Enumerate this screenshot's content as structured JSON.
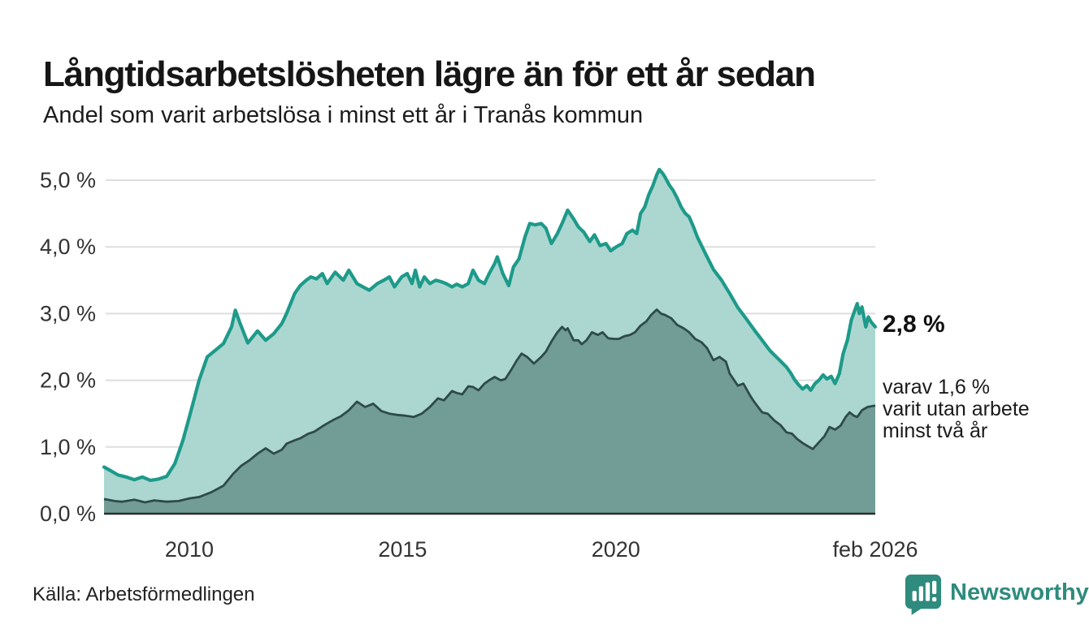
{
  "header": {
    "title": "Långtidsarbetslösheten lägre än för ett år sedan",
    "subtitle": "Andel som varit arbetslösa i minst ett år i Tranås kommun"
  },
  "annotations": {
    "latest_value": "2,8 %",
    "note_lines": [
      "varav 1,6 %",
      "varit utan arbete",
      "minst två år"
    ]
  },
  "footer": {
    "source": "Källa: Arbetsförmedlingen",
    "brand": "Newsworthy"
  },
  "colors": {
    "line_1yr": "#1d9a8a",
    "fill_1yr": "#a8d5cd",
    "line_2yr": "#2e4b47",
    "fill_2yr": "#6e9b94",
    "gridline": "#dedede",
    "axis": "#2d2d2d",
    "brand_teal": "#2e8b7d"
  },
  "chart_data": {
    "type": "area",
    "title": "Långtidsarbetslösheten lägre än för ett år sedan",
    "subtitle": "Andel som varit arbetslösa i minst ett år i Tranås kommun",
    "xlabel": "",
    "ylabel": "",
    "unit": "%",
    "grid": true,
    "legend_position": "none",
    "x_range": [
      2008.0,
      2026.083
    ],
    "y_range": [
      0,
      5.4
    ],
    "y_ticks": [
      {
        "v": 0,
        "label": "0,0 %"
      },
      {
        "v": 1,
        "label": "1,0 %"
      },
      {
        "v": 2,
        "label": "2,0 %"
      },
      {
        "v": 3,
        "label": "3,0 %"
      },
      {
        "v": 4,
        "label": "4,0 %"
      },
      {
        "v": 5,
        "label": "5,0 %"
      }
    ],
    "x_ticks": [
      {
        "v": 2010,
        "label": "2010"
      },
      {
        "v": 2015,
        "label": "2015"
      },
      {
        "v": 2020,
        "label": "2020"
      },
      {
        "v": 2026.083,
        "label": "feb 2026"
      }
    ],
    "series": [
      {
        "name": "Arbetslösa minst ett år",
        "latest_label": "2,8 %",
        "line_color": "#1d9a8a",
        "fill_color": "#a8d5cd",
        "points": [
          [
            2008.0,
            0.7
          ],
          [
            2008.17,
            0.64
          ],
          [
            2008.33,
            0.58
          ],
          [
            2008.52,
            0.55
          ],
          [
            2008.71,
            0.51
          ],
          [
            2008.9,
            0.55
          ],
          [
            2009.09,
            0.5
          ],
          [
            2009.28,
            0.52
          ],
          [
            2009.47,
            0.56
          ],
          [
            2009.66,
            0.75
          ],
          [
            2009.85,
            1.1
          ],
          [
            2010.0,
            1.45
          ],
          [
            2010.23,
            2.0
          ],
          [
            2010.42,
            2.35
          ],
          [
            2010.61,
            2.45
          ],
          [
            2010.8,
            2.55
          ],
          [
            2010.99,
            2.8
          ],
          [
            2011.08,
            3.05
          ],
          [
            2011.18,
            2.87
          ],
          [
            2011.37,
            2.56
          ],
          [
            2011.6,
            2.74
          ],
          [
            2011.79,
            2.6
          ],
          [
            2011.98,
            2.7
          ],
          [
            2012.17,
            2.85
          ],
          [
            2012.28,
            3.0
          ],
          [
            2012.47,
            3.3
          ],
          [
            2012.6,
            3.42
          ],
          [
            2012.74,
            3.5
          ],
          [
            2012.85,
            3.55
          ],
          [
            2012.98,
            3.52
          ],
          [
            2013.12,
            3.6
          ],
          [
            2013.23,
            3.45
          ],
          [
            2013.42,
            3.62
          ],
          [
            2013.61,
            3.5
          ],
          [
            2013.74,
            3.65
          ],
          [
            2013.93,
            3.45
          ],
          [
            2014.07,
            3.4
          ],
          [
            2014.22,
            3.35
          ],
          [
            2014.41,
            3.45
          ],
          [
            2014.56,
            3.5
          ],
          [
            2014.69,
            3.55
          ],
          [
            2014.81,
            3.4
          ],
          [
            2014.98,
            3.55
          ],
          [
            2015.11,
            3.6
          ],
          [
            2015.22,
            3.45
          ],
          [
            2015.3,
            3.65
          ],
          [
            2015.4,
            3.4
          ],
          [
            2015.51,
            3.55
          ],
          [
            2015.64,
            3.45
          ],
          [
            2015.78,
            3.5
          ],
          [
            2015.89,
            3.48
          ],
          [
            2016.02,
            3.45
          ],
          [
            2016.16,
            3.4
          ],
          [
            2016.27,
            3.44
          ],
          [
            2016.4,
            3.4
          ],
          [
            2016.54,
            3.45
          ],
          [
            2016.65,
            3.65
          ],
          [
            2016.78,
            3.5
          ],
          [
            2016.92,
            3.45
          ],
          [
            2017.03,
            3.6
          ],
          [
            2017.16,
            3.75
          ],
          [
            2017.22,
            3.85
          ],
          [
            2017.35,
            3.6
          ],
          [
            2017.49,
            3.42
          ],
          [
            2017.6,
            3.7
          ],
          [
            2017.73,
            3.82
          ],
          [
            2017.87,
            4.15
          ],
          [
            2017.98,
            4.35
          ],
          [
            2018.11,
            4.33
          ],
          [
            2018.25,
            4.35
          ],
          [
            2018.36,
            4.28
          ],
          [
            2018.49,
            4.05
          ],
          [
            2018.63,
            4.2
          ],
          [
            2018.74,
            4.35
          ],
          [
            2018.87,
            4.55
          ],
          [
            2019.01,
            4.42
          ],
          [
            2019.12,
            4.3
          ],
          [
            2019.25,
            4.22
          ],
          [
            2019.39,
            4.08
          ],
          [
            2019.5,
            4.18
          ],
          [
            2019.63,
            4.02
          ],
          [
            2019.77,
            4.05
          ],
          [
            2019.88,
            3.94
          ],
          [
            2020.01,
            4.0
          ],
          [
            2020.15,
            4.05
          ],
          [
            2020.26,
            4.2
          ],
          [
            2020.39,
            4.25
          ],
          [
            2020.49,
            4.2
          ],
          [
            2020.58,
            4.5
          ],
          [
            2020.68,
            4.6
          ],
          [
            2020.77,
            4.78
          ],
          [
            2020.87,
            4.92
          ],
          [
            2020.96,
            5.08
          ],
          [
            2021.02,
            5.16
          ],
          [
            2021.1,
            5.1
          ],
          [
            2021.15,
            5.05
          ],
          [
            2021.25,
            4.93
          ],
          [
            2021.34,
            4.85
          ],
          [
            2021.44,
            4.73
          ],
          [
            2021.53,
            4.6
          ],
          [
            2021.63,
            4.5
          ],
          [
            2021.72,
            4.45
          ],
          [
            2021.82,
            4.3
          ],
          [
            2021.91,
            4.15
          ],
          [
            2022.1,
            3.9
          ],
          [
            2022.29,
            3.66
          ],
          [
            2022.48,
            3.5
          ],
          [
            2022.67,
            3.3
          ],
          [
            2022.86,
            3.09
          ],
          [
            2023.05,
            2.93
          ],
          [
            2023.24,
            2.76
          ],
          [
            2023.43,
            2.6
          ],
          [
            2023.62,
            2.44
          ],
          [
            2023.81,
            2.32
          ],
          [
            2024.0,
            2.2
          ],
          [
            2024.1,
            2.11
          ],
          [
            2024.19,
            2.01
          ],
          [
            2024.29,
            1.93
          ],
          [
            2024.38,
            1.87
          ],
          [
            2024.48,
            1.92
          ],
          [
            2024.57,
            1.85
          ],
          [
            2024.67,
            1.95
          ],
          [
            2024.76,
            2.0
          ],
          [
            2024.86,
            2.08
          ],
          [
            2024.95,
            2.02
          ],
          [
            2025.05,
            2.06
          ],
          [
            2025.14,
            1.95
          ],
          [
            2025.24,
            2.1
          ],
          [
            2025.33,
            2.4
          ],
          [
            2025.43,
            2.6
          ],
          [
            2025.52,
            2.9
          ],
          [
            2025.66,
            3.15
          ],
          [
            2025.71,
            3.0
          ],
          [
            2025.77,
            3.1
          ],
          [
            2025.86,
            2.8
          ],
          [
            2025.92,
            2.95
          ],
          [
            2025.98,
            2.88
          ],
          [
            2026.083,
            2.8
          ]
        ]
      },
      {
        "name": "Varav utan arbete minst två år",
        "latest_label": "1,6 %",
        "line_color": "#2e4b47",
        "fill_color": "#6e9b94",
        "points": [
          [
            2008.0,
            0.22
          ],
          [
            2008.25,
            0.19
          ],
          [
            2008.42,
            0.18
          ],
          [
            2008.71,
            0.21
          ],
          [
            2008.96,
            0.17
          ],
          [
            2009.18,
            0.2
          ],
          [
            2009.47,
            0.18
          ],
          [
            2009.75,
            0.19
          ],
          [
            2010.0,
            0.23
          ],
          [
            2010.23,
            0.25
          ],
          [
            2010.51,
            0.32
          ],
          [
            2010.8,
            0.42
          ],
          [
            2011.03,
            0.6
          ],
          [
            2011.22,
            0.72
          ],
          [
            2011.41,
            0.8
          ],
          [
            2011.6,
            0.9
          ],
          [
            2011.79,
            0.98
          ],
          [
            2011.98,
            0.9
          ],
          [
            2012.17,
            0.96
          ],
          [
            2012.28,
            1.05
          ],
          [
            2012.47,
            1.1
          ],
          [
            2012.6,
            1.13
          ],
          [
            2012.79,
            1.2
          ],
          [
            2012.93,
            1.23
          ],
          [
            2013.17,
            1.33
          ],
          [
            2013.36,
            1.4
          ],
          [
            2013.55,
            1.46
          ],
          [
            2013.74,
            1.55
          ],
          [
            2013.93,
            1.68
          ],
          [
            2014.12,
            1.6
          ],
          [
            2014.31,
            1.65
          ],
          [
            2014.5,
            1.54
          ],
          [
            2014.69,
            1.5
          ],
          [
            2014.88,
            1.48
          ],
          [
            2015.07,
            1.47
          ],
          [
            2015.26,
            1.45
          ],
          [
            2015.45,
            1.5
          ],
          [
            2015.64,
            1.6
          ],
          [
            2015.83,
            1.73
          ],
          [
            2015.97,
            1.7
          ],
          [
            2016.16,
            1.84
          ],
          [
            2016.27,
            1.81
          ],
          [
            2016.4,
            1.79
          ],
          [
            2016.54,
            1.91
          ],
          [
            2016.65,
            1.9
          ],
          [
            2016.78,
            1.85
          ],
          [
            2016.92,
            1.95
          ],
          [
            2017.03,
            2.0
          ],
          [
            2017.16,
            2.05
          ],
          [
            2017.3,
            2.0
          ],
          [
            2017.41,
            2.02
          ],
          [
            2017.54,
            2.15
          ],
          [
            2017.68,
            2.3
          ],
          [
            2017.79,
            2.4
          ],
          [
            2017.92,
            2.35
          ],
          [
            2018.08,
            2.25
          ],
          [
            2018.25,
            2.35
          ],
          [
            2018.36,
            2.43
          ],
          [
            2018.49,
            2.58
          ],
          [
            2018.63,
            2.72
          ],
          [
            2018.74,
            2.8
          ],
          [
            2018.82,
            2.75
          ],
          [
            2018.87,
            2.78
          ],
          [
            2019.01,
            2.6
          ],
          [
            2019.12,
            2.6
          ],
          [
            2019.2,
            2.54
          ],
          [
            2019.31,
            2.6
          ],
          [
            2019.44,
            2.72
          ],
          [
            2019.58,
            2.68
          ],
          [
            2019.69,
            2.72
          ],
          [
            2019.82,
            2.63
          ],
          [
            2019.96,
            2.62
          ],
          [
            2020.07,
            2.62
          ],
          [
            2020.2,
            2.66
          ],
          [
            2020.33,
            2.68
          ],
          [
            2020.45,
            2.72
          ],
          [
            2020.58,
            2.82
          ],
          [
            2020.71,
            2.88
          ],
          [
            2020.83,
            2.98
          ],
          [
            2020.96,
            3.06
          ],
          [
            2021.06,
            3.0
          ],
          [
            2021.15,
            2.98
          ],
          [
            2021.3,
            2.93
          ],
          [
            2021.44,
            2.83
          ],
          [
            2021.59,
            2.78
          ],
          [
            2021.72,
            2.72
          ],
          [
            2021.86,
            2.62
          ],
          [
            2022.01,
            2.57
          ],
          [
            2022.14,
            2.48
          ],
          [
            2022.29,
            2.3
          ],
          [
            2022.43,
            2.35
          ],
          [
            2022.58,
            2.28
          ],
          [
            2022.67,
            2.1
          ],
          [
            2022.86,
            1.92
          ],
          [
            2022.99,
            1.95
          ],
          [
            2023.14,
            1.78
          ],
          [
            2023.24,
            1.68
          ],
          [
            2023.43,
            1.52
          ],
          [
            2023.56,
            1.5
          ],
          [
            2023.71,
            1.4
          ],
          [
            2023.86,
            1.33
          ],
          [
            2024.0,
            1.22
          ],
          [
            2024.13,
            1.2
          ],
          [
            2024.25,
            1.12
          ],
          [
            2024.38,
            1.06
          ],
          [
            2024.51,
            1.01
          ],
          [
            2024.62,
            0.97
          ],
          [
            2024.76,
            1.07
          ],
          [
            2024.89,
            1.16
          ],
          [
            2025.01,
            1.3
          ],
          [
            2025.14,
            1.26
          ],
          [
            2025.27,
            1.32
          ],
          [
            2025.39,
            1.45
          ],
          [
            2025.48,
            1.52
          ],
          [
            2025.58,
            1.47
          ],
          [
            2025.66,
            1.45
          ],
          [
            2025.77,
            1.55
          ],
          [
            2025.9,
            1.6
          ],
          [
            2026.083,
            1.62
          ]
        ]
      }
    ]
  }
}
